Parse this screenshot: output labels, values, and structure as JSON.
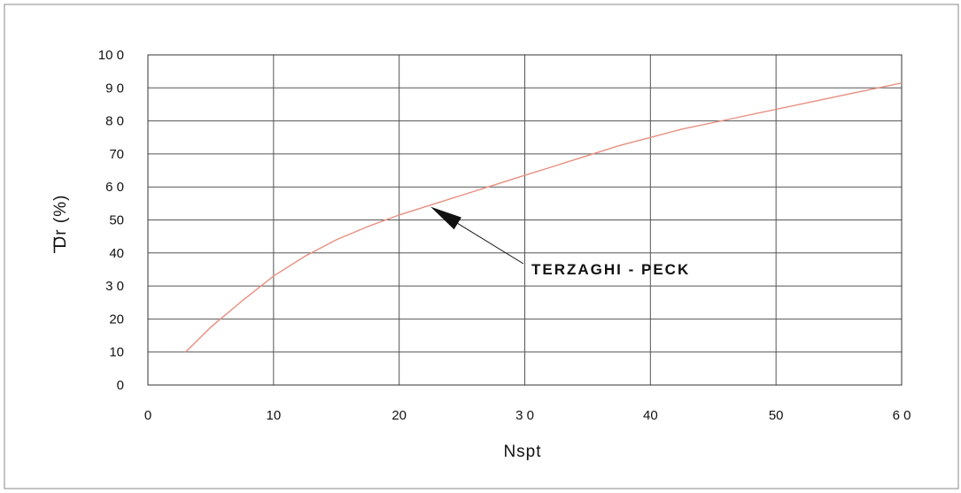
{
  "chart_data": {
    "type": "line",
    "xlabel": "Nspt",
    "ylabel": "Dr (%)",
    "ylabel_mark": "|",
    "xlim": [
      0,
      60
    ],
    "ylim": [
      0,
      100
    ],
    "x_ticks": [
      0,
      10,
      20,
      30,
      40,
      50,
      60
    ],
    "y_ticks": [
      0,
      10,
      20,
      30,
      40,
      50,
      60,
      70,
      80,
      90,
      100
    ],
    "x_tick_labels": [
      "0",
      "10",
      "20",
      "3 0",
      "40",
      "50",
      "6 0"
    ],
    "y_tick_labels": [
      "0",
      "10",
      "20",
      "3 0",
      "40",
      "50",
      "6 0",
      "70",
      "8 0",
      "9 0",
      "10 0"
    ],
    "grid": true,
    "series": [
      {
        "color": "#e88f80",
        "x": [
          3,
          5,
          7.5,
          10,
          12.5,
          15,
          17.5,
          20,
          22.5,
          25,
          27.5,
          30,
          32.5,
          35,
          37.5,
          40,
          42.5,
          45,
          47.5,
          50,
          52.5,
          55,
          57.5,
          60
        ],
        "y": [
          10,
          17.5,
          25.5,
          33,
          39,
          44,
          48,
          51.5,
          54.5,
          57.5,
          60.5,
          63.5,
          66.5,
          69.5,
          72.5,
          75,
          77.5,
          79.5,
          81.5,
          83.5,
          85.5,
          87.5,
          89.5,
          91.5
        ]
      }
    ],
    "annotations": [
      {
        "text": "TERZAGHI - PECK",
        "arrow_to": [
          22.5,
          54
        ]
      }
    ]
  }
}
